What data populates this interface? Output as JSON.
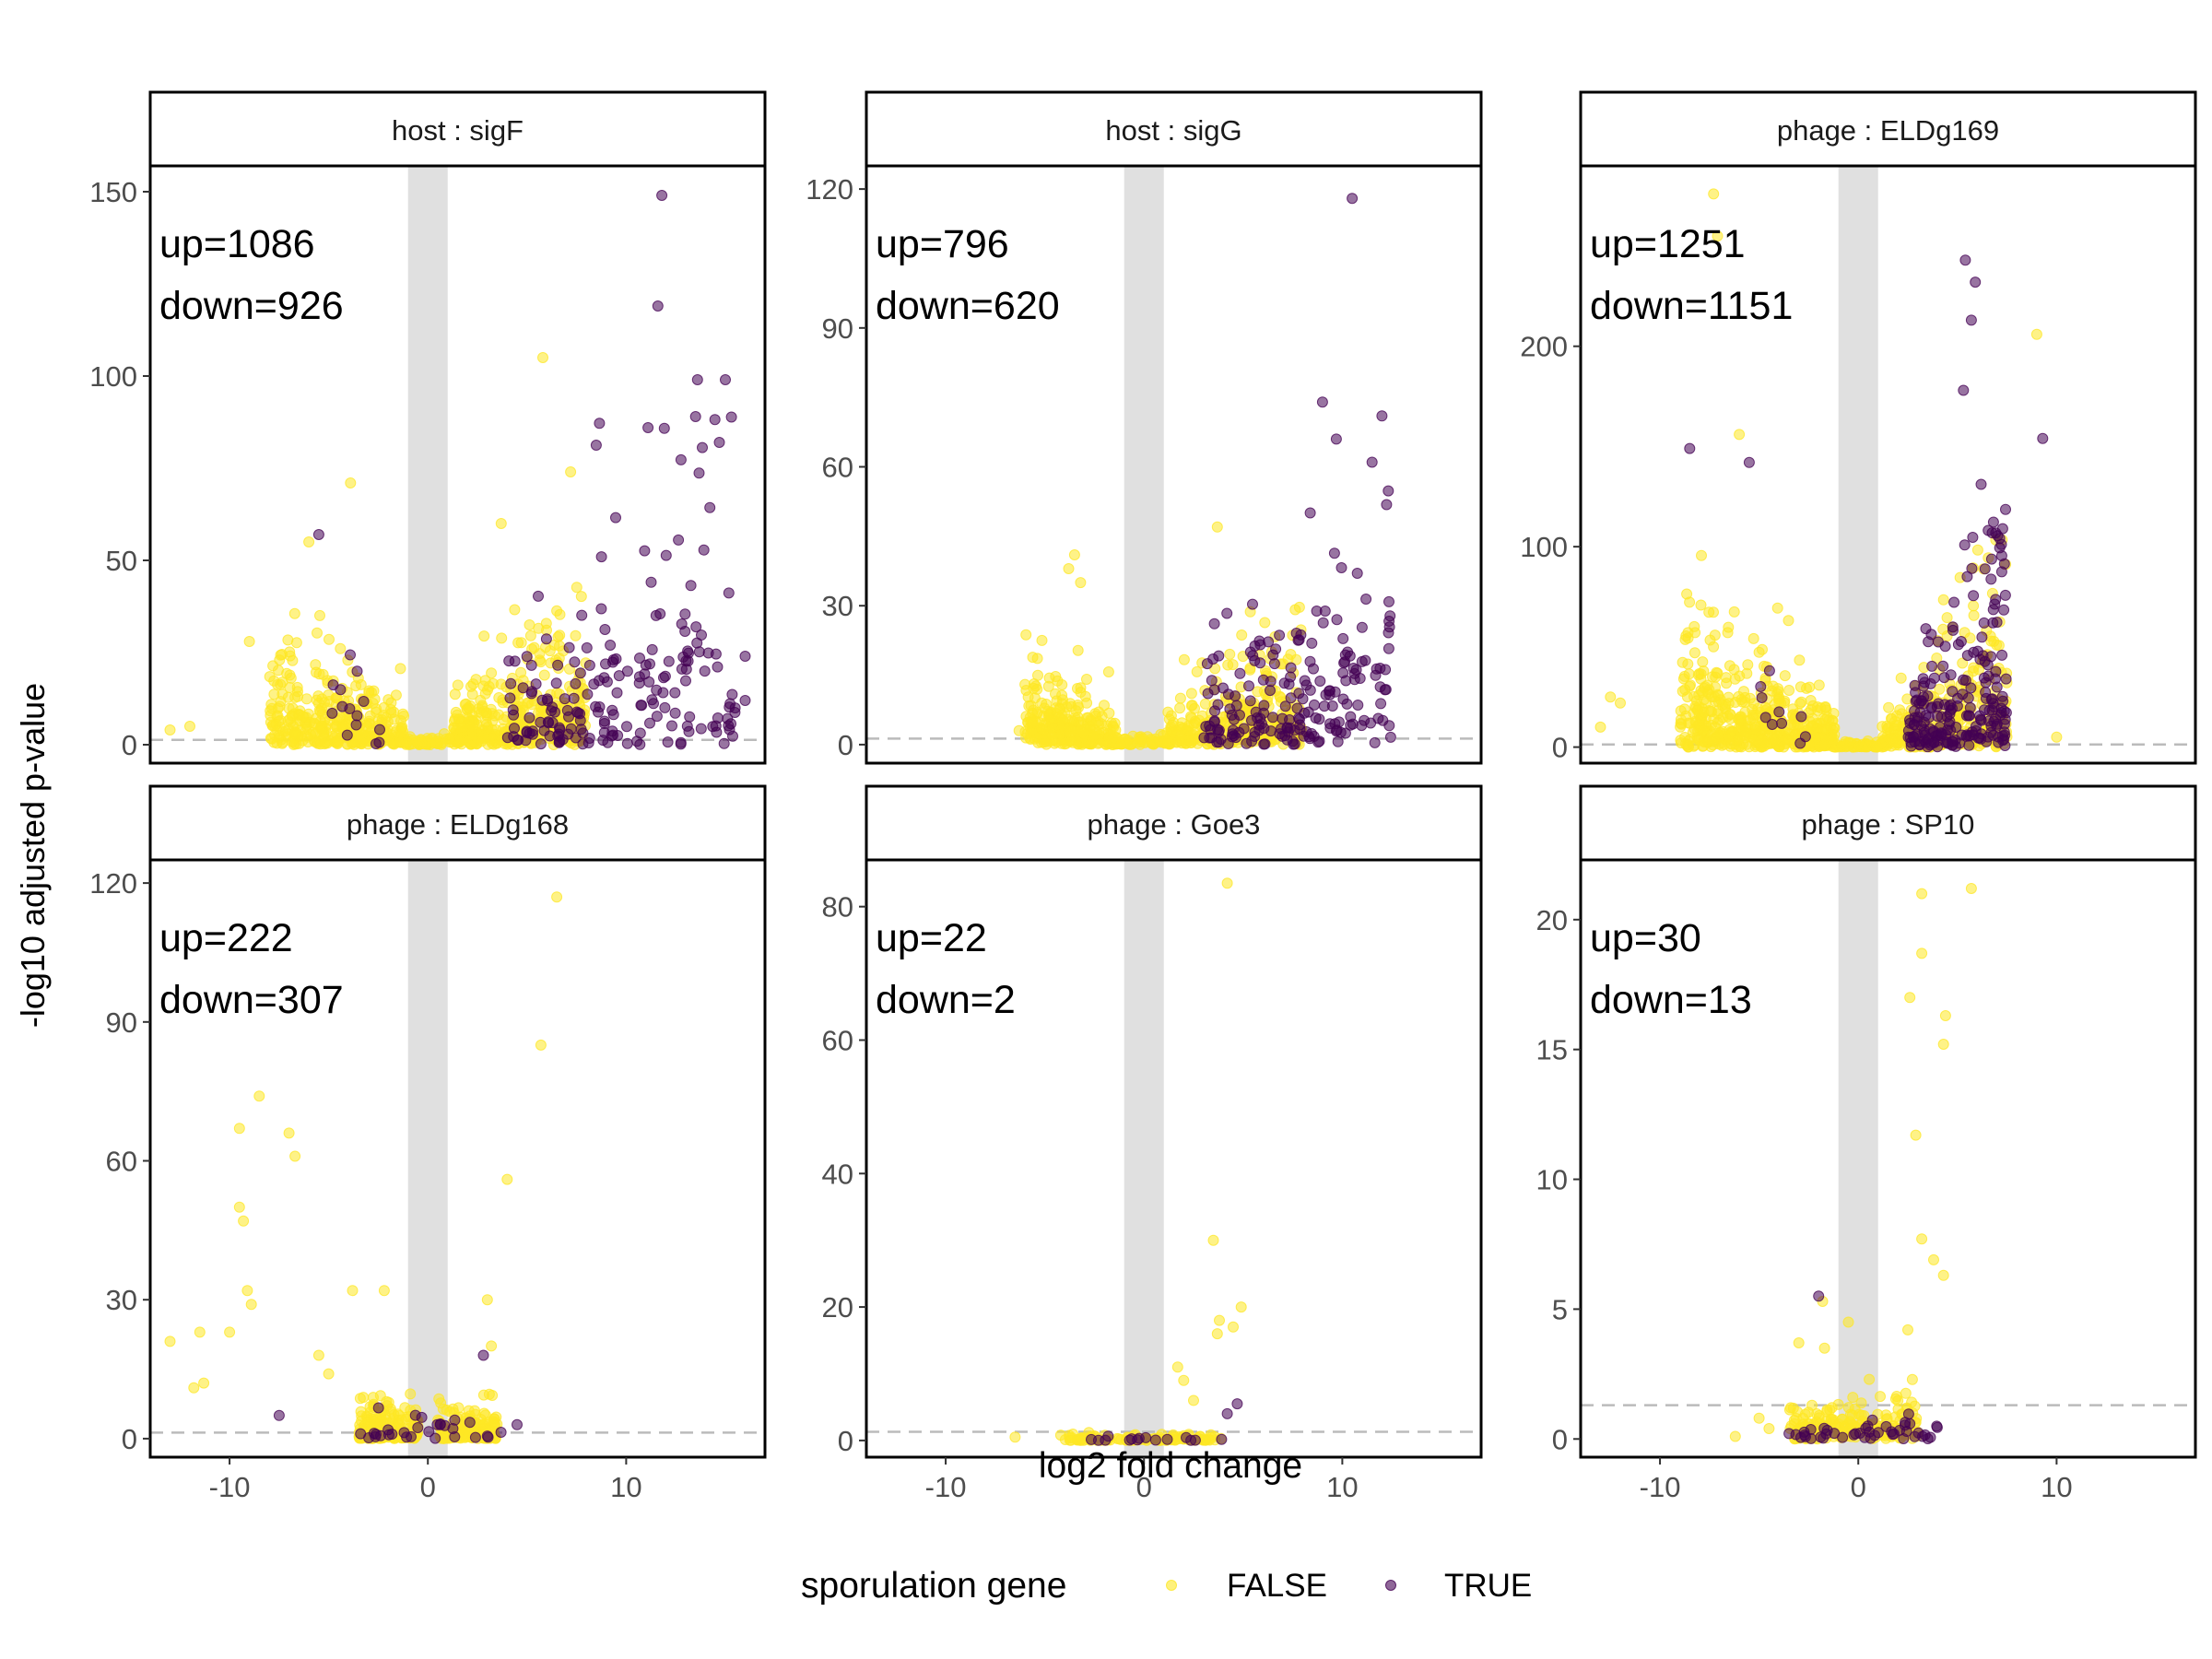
{
  "chart_data": {
    "type": "scatter",
    "xlabel": "log2 fold change",
    "ylabel": "-log10 adjusted p-value",
    "xlim": [
      -14,
      17
    ],
    "xticks": [
      -10,
      0,
      10
    ],
    "fold_change_band": [
      -1,
      1
    ],
    "significance_threshold": 1.3,
    "grid": false,
    "legend": {
      "title": "sporulation gene",
      "placement": "bottom",
      "entries": [
        {
          "label": "FALSE",
          "color": "#FDE725"
        },
        {
          "label": "TRUE",
          "color": "#440154"
        }
      ]
    },
    "colors": {
      "FALSE": "#FDE725",
      "TRUE": "#440154",
      "band": "#E0E0E0",
      "threshold": "#BBBBBB"
    },
    "panels": [
      {
        "title": "host : sigF",
        "up_label": "up=1086",
        "down_label": "down=926",
        "ylim": [
          -5,
          157
        ],
        "yticks": [
          0,
          50,
          100,
          150
        ],
        "clusters": [
          {
            "cls": "FALSE",
            "n": 360,
            "xmin": -8,
            "xmax": -1.2,
            "yscale": 8,
            "ymax": 40,
            "seed": 11,
            "peak": "left"
          },
          {
            "cls": "FALSE",
            "n": 420,
            "xmin": 1.2,
            "xmax": 8,
            "yscale": 10,
            "ymax": 45,
            "seed": 12,
            "peak": "right"
          },
          {
            "cls": "FALSE",
            "n": 60,
            "xmin": -1.2,
            "xmax": 1.2,
            "yscale": 1,
            "ymax": 3,
            "seed": 13,
            "peak": "none"
          },
          {
            "cls": "TRUE",
            "n": 190,
            "xmin": 4,
            "xmax": 15.5,
            "yscale": 22,
            "ymax": 90,
            "seed": 14,
            "peak": "right"
          },
          {
            "cls": "TRUE",
            "n": 14,
            "xmin": -5,
            "xmax": -2,
            "yscale": 10,
            "ymax": 40,
            "seed": 15,
            "peak": "left"
          }
        ],
        "points": [
          {
            "x": 11.8,
            "y": 149,
            "cls": "TRUE"
          },
          {
            "x": 11.6,
            "y": 119,
            "cls": "TRUE"
          },
          {
            "x": 13.6,
            "y": 99,
            "cls": "TRUE"
          },
          {
            "x": 15,
            "y": 99,
            "cls": "TRUE"
          },
          {
            "x": 5.8,
            "y": 105,
            "cls": "FALSE"
          },
          {
            "x": 13.5,
            "y": 89,
            "cls": "TRUE"
          },
          {
            "x": 11.1,
            "y": 86,
            "cls": "TRUE"
          },
          {
            "x": 14.7,
            "y": 82,
            "cls": "TRUE"
          },
          {
            "x": 7.2,
            "y": 74,
            "cls": "FALSE"
          },
          {
            "x": -3.9,
            "y": 71,
            "cls": "FALSE"
          },
          {
            "x": 3.7,
            "y": 60,
            "cls": "FALSE"
          },
          {
            "x": -5.5,
            "y": 57,
            "cls": "TRUE"
          },
          {
            "x": -6,
            "y": 55,
            "cls": "FALSE"
          },
          {
            "x": -9,
            "y": 28,
            "cls": "FALSE"
          },
          {
            "x": -12,
            "y": 5,
            "cls": "FALSE"
          },
          {
            "x": -13,
            "y": 4,
            "cls": "FALSE"
          },
          {
            "x": 16,
            "y": 24,
            "cls": "TRUE"
          },
          {
            "x": 16,
            "y": 12,
            "cls": "TRUE"
          }
        ]
      },
      {
        "title": "host : sigG",
        "up_label": "up=796",
        "down_label": "down=620",
        "ylim": [
          -4,
          125
        ],
        "yticks": [
          0,
          30,
          60,
          90,
          120
        ],
        "clusters": [
          {
            "cls": "FALSE",
            "n": 300,
            "xmin": -6,
            "xmax": -1.2,
            "yscale": 5,
            "ymax": 25,
            "seed": 21,
            "peak": "left"
          },
          {
            "cls": "FALSE",
            "n": 300,
            "xmin": 1.2,
            "xmax": 8,
            "yscale": 7,
            "ymax": 30,
            "seed": 22,
            "peak": "right"
          },
          {
            "cls": "FALSE",
            "n": 50,
            "xmin": -1.2,
            "xmax": 1.2,
            "yscale": 1,
            "ymax": 3,
            "seed": 23,
            "peak": "none"
          },
          {
            "cls": "TRUE",
            "n": 200,
            "xmin": 3,
            "xmax": 12.5,
            "yscale": 14,
            "ymax": 55,
            "seed": 24,
            "peak": "right"
          }
        ],
        "points": [
          {
            "x": 10.5,
            "y": 118,
            "cls": "TRUE"
          },
          {
            "x": 9,
            "y": 74,
            "cls": "TRUE"
          },
          {
            "x": 12,
            "y": 71,
            "cls": "TRUE"
          },
          {
            "x": 9.7,
            "y": 66,
            "cls": "TRUE"
          },
          {
            "x": 11.5,
            "y": 61,
            "cls": "TRUE"
          },
          {
            "x": 3.7,
            "y": 47,
            "cls": "FALSE"
          },
          {
            "x": -3.5,
            "y": 41,
            "cls": "FALSE"
          },
          {
            "x": -3.8,
            "y": 38,
            "cls": "FALSE"
          },
          {
            "x": -3.2,
            "y": 35,
            "cls": "FALSE"
          },
          {
            "x": -6,
            "y": 13,
            "cls": "FALSE"
          },
          {
            "x": -6.3,
            "y": 3,
            "cls": "FALSE"
          }
        ]
      },
      {
        "title": "phage : ELDg169",
        "up_label": "up=1251",
        "down_label": "down=1151",
        "ylim": [
          -8,
          290
        ],
        "yticks": [
          0,
          100,
          200
        ],
        "clusters": [
          {
            "cls": "FALSE",
            "n": 520,
            "xmin": -9,
            "xmax": -1.2,
            "yscale": 18,
            "ymax": 100,
            "seed": 31,
            "peak": "left"
          },
          {
            "cls": "FALSE",
            "n": 320,
            "xmin": 1.2,
            "xmax": 7.5,
            "yscale": 20,
            "ymax": 110,
            "seed": 32,
            "peak": "right"
          },
          {
            "cls": "FALSE",
            "n": 50,
            "xmin": -1.2,
            "xmax": 1.2,
            "yscale": 1,
            "ymax": 4,
            "seed": 33,
            "peak": "none"
          },
          {
            "cls": "TRUE",
            "n": 220,
            "xmin": 2.5,
            "xmax": 7.5,
            "yscale": 35,
            "ymax": 140,
            "seed": 34,
            "peak": "right"
          },
          {
            "cls": "TRUE",
            "n": 10,
            "xmin": -5,
            "xmax": -2.5,
            "yscale": 15,
            "ymax": 50,
            "seed": 35,
            "peak": "left"
          }
        ],
        "points": [
          {
            "x": -7.3,
            "y": 276,
            "cls": "FALSE"
          },
          {
            "x": -7.1,
            "y": 255,
            "cls": "FALSE"
          },
          {
            "x": 5.4,
            "y": 243,
            "cls": "TRUE"
          },
          {
            "x": 5.9,
            "y": 232,
            "cls": "TRUE"
          },
          {
            "x": 5.7,
            "y": 213,
            "cls": "TRUE"
          },
          {
            "x": 9,
            "y": 206,
            "cls": "FALSE"
          },
          {
            "x": 5.3,
            "y": 178,
            "cls": "TRUE"
          },
          {
            "x": 9.3,
            "y": 154,
            "cls": "TRUE"
          },
          {
            "x": -6,
            "y": 156,
            "cls": "FALSE"
          },
          {
            "x": -8.5,
            "y": 149,
            "cls": "TRUE"
          },
          {
            "x": -5.5,
            "y": 142,
            "cls": "TRUE"
          },
          {
            "x": -12.5,
            "y": 25,
            "cls": "FALSE"
          },
          {
            "x": -12,
            "y": 22,
            "cls": "FALSE"
          },
          {
            "x": 10,
            "y": 5,
            "cls": "FALSE"
          },
          {
            "x": -13,
            "y": 10,
            "cls": "FALSE"
          }
        ]
      },
      {
        "title": "phage : ELDg168",
        "up_label": "up=222",
        "down_label": "down=307",
        "ylim": [
          -4,
          125
        ],
        "yticks": [
          0,
          30,
          60,
          90,
          120
        ],
        "clusters": [
          {
            "cls": "FALSE",
            "n": 230,
            "xmin": -3.5,
            "xmax": -0.5,
            "yscale": 2.5,
            "ymax": 10,
            "seed": 41,
            "peak": "none"
          },
          {
            "cls": "FALSE",
            "n": 150,
            "xmin": 0.5,
            "xmax": 3.5,
            "yscale": 3,
            "ymax": 12,
            "seed": 42,
            "peak": "none"
          },
          {
            "cls": "TRUE",
            "n": 30,
            "xmin": -3.5,
            "xmax": 4,
            "yscale": 2,
            "ymax": 18,
            "seed": 43,
            "peak": "none"
          }
        ],
        "points": [
          {
            "x": 6.5,
            "y": 117,
            "cls": "FALSE"
          },
          {
            "x": 5.7,
            "y": 85,
            "cls": "FALSE"
          },
          {
            "x": -8.5,
            "y": 74,
            "cls": "FALSE"
          },
          {
            "x": -9.5,
            "y": 67,
            "cls": "FALSE"
          },
          {
            "x": -7,
            "y": 66,
            "cls": "FALSE"
          },
          {
            "x": -6.7,
            "y": 61,
            "cls": "FALSE"
          },
          {
            "x": 4,
            "y": 56,
            "cls": "FALSE"
          },
          {
            "x": -9.5,
            "y": 50,
            "cls": "FALSE"
          },
          {
            "x": -9.3,
            "y": 47,
            "cls": "FALSE"
          },
          {
            "x": -9.1,
            "y": 32,
            "cls": "FALSE"
          },
          {
            "x": -8.9,
            "y": 29,
            "cls": "FALSE"
          },
          {
            "x": -3.8,
            "y": 32,
            "cls": "FALSE"
          },
          {
            "x": -2.2,
            "y": 32,
            "cls": "FALSE"
          },
          {
            "x": 3,
            "y": 30,
            "cls": "FALSE"
          },
          {
            "x": -13,
            "y": 21,
            "cls": "FALSE"
          },
          {
            "x": -11.5,
            "y": 23,
            "cls": "FALSE"
          },
          {
            "x": -10,
            "y": 23,
            "cls": "FALSE"
          },
          {
            "x": -11.8,
            "y": 11,
            "cls": "FALSE"
          },
          {
            "x": -11.3,
            "y": 12,
            "cls": "FALSE"
          },
          {
            "x": -5.5,
            "y": 18,
            "cls": "FALSE"
          },
          {
            "x": -5,
            "y": 14,
            "cls": "FALSE"
          },
          {
            "x": -7.5,
            "y": 5,
            "cls": "TRUE"
          },
          {
            "x": 3.2,
            "y": 20,
            "cls": "FALSE"
          },
          {
            "x": 2.8,
            "y": 18,
            "cls": "TRUE"
          },
          {
            "x": 4.5,
            "y": 3,
            "cls": "TRUE"
          }
        ]
      },
      {
        "title": "phage : Goe3",
        "up_label": "up=22",
        "down_label": "down=2",
        "ylim": [
          -2.5,
          87
        ],
        "yticks": [
          0,
          20,
          40,
          60,
          80
        ],
        "clusters": [
          {
            "cls": "FALSE",
            "n": 130,
            "xmin": -4,
            "xmax": 4,
            "yscale": 0.3,
            "ymax": 1.2,
            "seed": 51,
            "peak": "none"
          },
          {
            "cls": "TRUE",
            "n": 15,
            "xmin": -3,
            "xmax": 4,
            "yscale": 0.3,
            "ymax": 1,
            "seed": 52,
            "peak": "none"
          }
        ],
        "points": [
          {
            "x": 4.2,
            "y": 83.5,
            "cls": "FALSE"
          },
          {
            "x": 3.5,
            "y": 30,
            "cls": "FALSE"
          },
          {
            "x": 4.9,
            "y": 20,
            "cls": "FALSE"
          },
          {
            "x": 3.8,
            "y": 18,
            "cls": "FALSE"
          },
          {
            "x": 4.5,
            "y": 17,
            "cls": "FALSE"
          },
          {
            "x": 3.7,
            "y": 16,
            "cls": "FALSE"
          },
          {
            "x": 1.7,
            "y": 11,
            "cls": "FALSE"
          },
          {
            "x": 2,
            "y": 9,
            "cls": "FALSE"
          },
          {
            "x": 2.5,
            "y": 6,
            "cls": "FALSE"
          },
          {
            "x": 4.7,
            "y": 5.5,
            "cls": "TRUE"
          },
          {
            "x": 4.2,
            "y": 4,
            "cls": "TRUE"
          },
          {
            "x": -6.5,
            "y": 0.5,
            "cls": "FALSE"
          },
          {
            "x": -4.2,
            "y": 0.8,
            "cls": "FALSE"
          }
        ]
      },
      {
        "title": "phage : SP10",
        "up_label": "up=30",
        "down_label": "down=13",
        "ylim": [
          -0.7,
          22.3
        ],
        "yticks": [
          0,
          5,
          10,
          15,
          20
        ],
        "clusters": [
          {
            "cls": "FALSE",
            "n": 230,
            "xmin": -3.5,
            "xmax": 3,
            "yscale": 0.6,
            "ymax": 2.5,
            "seed": 61,
            "peak": "none"
          },
          {
            "cls": "TRUE",
            "n": 45,
            "xmin": -3.5,
            "xmax": 4,
            "yscale": 0.4,
            "ymax": 1.5,
            "seed": 62,
            "peak": "none"
          }
        ],
        "points": [
          {
            "x": 3.2,
            "y": 21,
            "cls": "FALSE"
          },
          {
            "x": 5.7,
            "y": 21.2,
            "cls": "FALSE"
          },
          {
            "x": 3.2,
            "y": 18.7,
            "cls": "FALSE"
          },
          {
            "x": 2.6,
            "y": 17,
            "cls": "FALSE"
          },
          {
            "x": 4.4,
            "y": 16.3,
            "cls": "FALSE"
          },
          {
            "x": 4.3,
            "y": 15.2,
            "cls": "FALSE"
          },
          {
            "x": 2.9,
            "y": 11.7,
            "cls": "FALSE"
          },
          {
            "x": 3.2,
            "y": 7.7,
            "cls": "FALSE"
          },
          {
            "x": 3.8,
            "y": 6.9,
            "cls": "FALSE"
          },
          {
            "x": 4.3,
            "y": 6.3,
            "cls": "FALSE"
          },
          {
            "x": -2,
            "y": 5.5,
            "cls": "TRUE"
          },
          {
            "x": -1.8,
            "y": 5.3,
            "cls": "FALSE"
          },
          {
            "x": -0.5,
            "y": 4.5,
            "cls": "FALSE"
          },
          {
            "x": 2.5,
            "y": 4.2,
            "cls": "FALSE"
          },
          {
            "x": -3,
            "y": 3.7,
            "cls": "FALSE"
          },
          {
            "x": -1.7,
            "y": 3.5,
            "cls": "FALSE"
          },
          {
            "x": -6.2,
            "y": 0.1,
            "cls": "FALSE"
          },
          {
            "x": -5,
            "y": 0.8,
            "cls": "FALSE"
          },
          {
            "x": -4.5,
            "y": 0.4,
            "cls": "FALSE"
          }
        ]
      }
    ]
  }
}
